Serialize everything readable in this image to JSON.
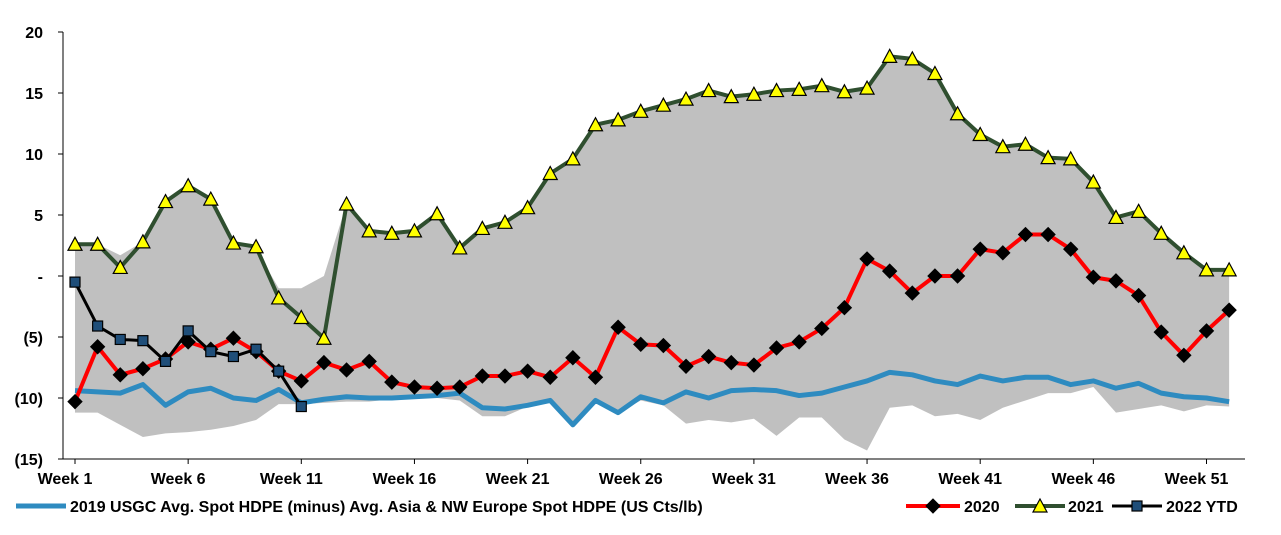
{
  "chart_data": {
    "type": "line",
    "title": "",
    "xlabel": "",
    "ylabel": "",
    "ylim": [
      -15,
      20
    ],
    "y_ticks": [
      {
        "value": 20,
        "label": "20"
      },
      {
        "value": 15,
        "label": "15"
      },
      {
        "value": 10,
        "label": "10"
      },
      {
        "value": 5,
        "label": "5"
      },
      {
        "value": 0,
        "label": "-"
      },
      {
        "value": -5,
        "label": "(5)"
      },
      {
        "value": -10,
        "label": "(10)"
      },
      {
        "value": -15,
        "label": "(15)"
      }
    ],
    "x_tick_labels": [
      {
        "week": 1,
        "label": "Week 1"
      },
      {
        "week": 6,
        "label": "Week 6"
      },
      {
        "week": 11,
        "label": "Week 11"
      },
      {
        "week": 16,
        "label": "Week 16"
      },
      {
        "week": 21,
        "label": "Week 21"
      },
      {
        "week": 26,
        "label": "Week 26"
      },
      {
        "week": 31,
        "label": "Week 31"
      },
      {
        "week": 36,
        "label": "Week 36"
      },
      {
        "week": 41,
        "label": "Week 41"
      },
      {
        "week": 46,
        "label": "Week 46"
      },
      {
        "week": 51,
        "label": "Week 51"
      }
    ],
    "weeks": [
      1,
      2,
      3,
      4,
      5,
      6,
      7,
      8,
      9,
      10,
      11,
      12,
      13,
      14,
      15,
      16,
      17,
      18,
      19,
      20,
      21,
      22,
      23,
      24,
      25,
      26,
      27,
      28,
      29,
      30,
      31,
      32,
      33,
      34,
      35,
      36,
      37,
      38,
      39,
      40,
      41,
      42,
      43,
      44,
      45,
      46,
      47,
      48,
      49,
      50,
      51,
      52
    ],
    "range_band": {
      "upper": [
        2.6,
        2.6,
        1.7,
        2.8,
        6.0,
        7.4,
        6.3,
        2.6,
        2.2,
        -1.0,
        -1.0,
        0.0,
        5.9,
        3.7,
        3.4,
        3.7,
        5.1,
        2.3,
        3.9,
        4.4,
        5.6,
        8.4,
        9.6,
        12.4,
        12.8,
        13.5,
        14.0,
        14.5,
        15.2,
        14.7,
        14.9,
        15.2,
        15.3,
        15.6,
        15.1,
        15.4,
        18.0,
        17.8,
        16.6,
        13.3,
        11.6,
        10.6,
        10.8,
        9.7,
        9.6,
        7.7,
        4.8,
        5.3,
        3.5,
        1.9,
        0.5,
        0.5
      ],
      "lower": [
        -11.2,
        -11.2,
        -12.2,
        -13.2,
        -12.9,
        -12.8,
        -12.6,
        -12.3,
        -11.8,
        -10.5,
        -10.5,
        -10.4,
        -10.3,
        -10.3,
        -10.1,
        -10.0,
        -10.0,
        -10.2,
        -11.5,
        -11.5,
        -10.7,
        -10.4,
        -12.1,
        -10.3,
        -11.2,
        -10.2,
        -10.6,
        -12.1,
        -11.8,
        -12.0,
        -11.7,
        -13.1,
        -11.6,
        -11.6,
        -13.4,
        -14.3,
        -10.8,
        -10.6,
        -11.5,
        -11.3,
        -11.8,
        -10.8,
        -10.2,
        -9.6,
        -9.6,
        -9.1,
        -11.2,
        -10.9,
        -10.6,
        -11.1,
        -10.6,
        -10.7
      ]
    },
    "series": [
      {
        "name": "2019 USGC Avg. Spot HDPE (minus) Avg. Asia & NW Europe Spot HDPE (US Cts/lb)",
        "color": "#2e8bc0",
        "marker": "none",
        "x": [
          1,
          2,
          3,
          4,
          5,
          6,
          7,
          8,
          9,
          10,
          11,
          12,
          13,
          14,
          15,
          16,
          17,
          18,
          19,
          20,
          21,
          22,
          23,
          24,
          25,
          26,
          27,
          28,
          29,
          30,
          31,
          32,
          33,
          34,
          35,
          36,
          37,
          38,
          39,
          40,
          41,
          42,
          43,
          44,
          45,
          46,
          47,
          48,
          49,
          50,
          51,
          52
        ],
        "values": [
          -9.4,
          -9.5,
          -9.6,
          -8.9,
          -10.6,
          -9.5,
          -9.2,
          -10.0,
          -10.2,
          -9.3,
          -10.4,
          -10.1,
          -9.9,
          -10.0,
          -10.0,
          -9.9,
          -9.8,
          -9.6,
          -10.8,
          -10.9,
          -10.6,
          -10.2,
          -12.2,
          -10.2,
          -11.2,
          -9.9,
          -10.4,
          -9.5,
          -10.0,
          -9.4,
          -9.3,
          -9.4,
          -9.8,
          -9.6,
          -9.1,
          -8.6,
          -7.9,
          -8.1,
          -8.6,
          -8.9,
          -8.2,
          -8.6,
          -8.3,
          -8.3,
          -8.9,
          -8.6,
          -9.2,
          -8.8,
          -9.6,
          -9.9,
          -10.0,
          -10.3
        ]
      },
      {
        "name": "2020",
        "color": "#ff0000",
        "marker": "diamond",
        "x": [
          1,
          2,
          3,
          4,
          5,
          6,
          7,
          8,
          9,
          10,
          11,
          12,
          13,
          14,
          15,
          16,
          17,
          18,
          19,
          20,
          21,
          22,
          23,
          24,
          25,
          26,
          27,
          28,
          29,
          30,
          31,
          32,
          33,
          34,
          35,
          36,
          37,
          38,
          39,
          40,
          41,
          42,
          43,
          44,
          45,
          46,
          47,
          48,
          49,
          50,
          51,
          52
        ],
        "values": [
          -10.3,
          -5.8,
          -8.1,
          -7.6,
          -6.8,
          -5.4,
          -6.0,
          -5.1,
          -6.2,
          -7.8,
          -8.6,
          -7.1,
          -7.7,
          -7.0,
          -8.7,
          -9.1,
          -9.2,
          -9.1,
          -8.2,
          -8.2,
          -7.8,
          -8.3,
          -6.7,
          -8.3,
          -4.2,
          -5.6,
          -5.7,
          -7.4,
          -6.6,
          -7.1,
          -7.3,
          -5.9,
          -5.4,
          -4.3,
          -2.6,
          1.4,
          0.4,
          -1.4,
          0.0,
          0.0,
          2.2,
          1.9,
          3.4,
          3.4,
          2.2,
          -0.1,
          -0.4,
          -1.6,
          -4.6,
          -6.5,
          -4.5,
          -2.8
        ]
      },
      {
        "name": "2021",
        "color": "#2f4f2f",
        "marker": "triangle",
        "x": [
          1,
          2,
          3,
          4,
          5,
          6,
          7,
          8,
          9,
          10,
          11,
          12,
          13,
          14,
          15,
          16,
          17,
          18,
          19,
          20,
          21,
          22,
          23,
          24,
          25,
          26,
          27,
          28,
          29,
          30,
          31,
          32,
          33,
          34,
          35,
          36,
          37,
          38,
          39,
          40,
          41,
          42,
          43,
          44,
          45,
          46,
          47,
          48,
          49,
          50,
          51,
          52
        ],
        "values": [
          2.6,
          2.6,
          0.7,
          2.8,
          6.1,
          7.4,
          6.3,
          2.7,
          2.4,
          -1.8,
          -3.4,
          -5.1,
          5.9,
          3.7,
          3.5,
          3.7,
          5.1,
          2.3,
          3.9,
          4.4,
          5.6,
          8.4,
          9.6,
          12.4,
          12.8,
          13.5,
          14.0,
          14.5,
          15.2,
          14.7,
          14.9,
          15.2,
          15.3,
          15.6,
          15.1,
          15.4,
          18.0,
          17.8,
          16.6,
          13.3,
          11.6,
          10.6,
          10.8,
          9.7,
          9.6,
          7.7,
          4.8,
          5.3,
          3.5,
          1.9,
          0.5,
          0.5
        ]
      },
      {
        "name": "2022 YTD",
        "color": "#000000",
        "marker": "square",
        "x": [
          1,
          2,
          3,
          4,
          5,
          6,
          7,
          8,
          9,
          10,
          11
        ],
        "values": [
          -0.5,
          -4.1,
          -5.2,
          -5.3,
          -7.0,
          -4.5,
          -6.2,
          -6.6,
          -6.0,
          -7.8,
          -10.7
        ]
      }
    ],
    "legend": {
      "position": "bottom"
    },
    "grid": false
  }
}
